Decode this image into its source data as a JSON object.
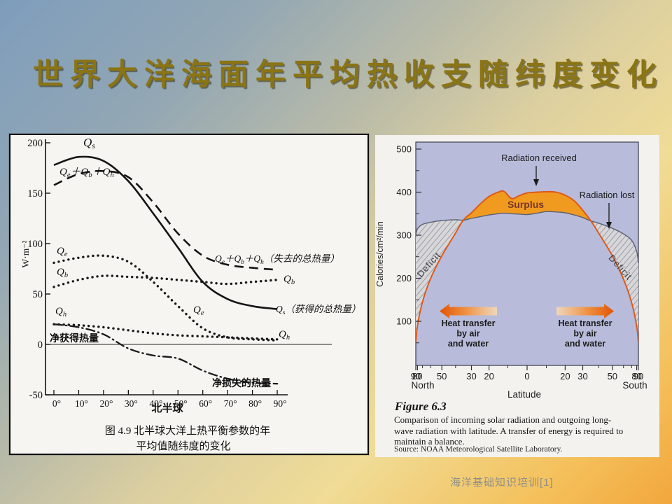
{
  "slide": {
    "title": "世界大洋海面年平均热收支随纬度变化",
    "footer": "海洋基础知识培训[1]"
  },
  "chart_data": [
    {
      "type": "line",
      "title": "图 4.9 北半球大洋上热平衡参数的年平均值随纬度的变化",
      "xlabel": "北半球",
      "ylabel": "W·m⁻²",
      "ylim": [
        -50,
        210
      ],
      "y_ticks": [
        200,
        150,
        100,
        50,
        0,
        -50
      ],
      "categories": [
        0,
        10,
        20,
        30,
        40,
        50,
        60,
        70,
        80,
        90
      ],
      "x_tick_labels": [
        "0°",
        "10°",
        "20°",
        "30°",
        "40°",
        "50°",
        "60°",
        "70°",
        "80°",
        "90°"
      ],
      "grid": false,
      "series": [
        {
          "name": "Qs",
          "label": "Q_s",
          "label_right": "Q_s（获得的总热量）",
          "style": "solid",
          "values": [
            178,
            186,
            182,
            162,
            130,
            96,
            62,
            45,
            38,
            35
          ]
        },
        {
          "name": "Qe+Qb+Qh",
          "label": "Q_e＋Q_b＋Q_h",
          "label_right": "Q_e＋Q_b＋Q_h（失去的总热量）",
          "style": "dashed",
          "values": [
            158,
            169,
            172,
            166,
            141,
            110,
            88,
            79,
            76,
            74
          ]
        },
        {
          "name": "Qe",
          "label": "Q_e",
          "label_mid": "Q_e",
          "style": "dotted",
          "values": [
            81,
            86,
            88,
            82,
            62,
            38,
            16,
            7,
            5,
            4
          ]
        },
        {
          "name": "Qb",
          "label": "Q_b",
          "label_right": "Q_b",
          "style": "dotted",
          "values": [
            57,
            64,
            68,
            67,
            66,
            64,
            62,
            60,
            62,
            64
          ]
        },
        {
          "name": "Qh",
          "label": "Q_h",
          "label_right": "Q_h",
          "style": "dotted",
          "values": [
            20,
            19,
            17,
            14,
            11,
            9,
            8,
            7,
            6,
            5
          ]
        },
        {
          "name": "net",
          "label": "净获得热量",
          "label_right": "净损失的热量",
          "style": "dashdot",
          "values": [
            20,
            17,
            10,
            -4,
            -11,
            -14,
            -26,
            -34,
            -38,
            -39
          ]
        }
      ],
      "caption_line1": "图 4.9  北半球大洋上热平衡参数的年",
      "caption_line2": "平均值随纬度的变化"
    },
    {
      "type": "area",
      "xlabel": "Latitude",
      "ylabel": "Calories/cm²/min",
      "x_axis_note": [
        "North",
        "South"
      ],
      "ylim": [
        0,
        516
      ],
      "y_ticks": [
        500,
        400,
        300,
        200,
        100
      ],
      "x_tick_lats": [
        -90,
        -80,
        -50,
        -30,
        -20,
        0,
        20,
        30,
        50,
        80,
        90
      ],
      "x_tick_labels": [
        "90",
        "80",
        "50",
        "30",
        "20",
        "0",
        "20",
        "30",
        "50",
        "80",
        "90"
      ],
      "x_minor_lats": [
        -70,
        -60,
        -40,
        -10,
        10,
        40,
        60,
        70
      ],
      "x_scale": "sine-of-latitude, negative = North",
      "lats": [
        -90,
        -80,
        -70,
        -60,
        -50,
        -40,
        -35,
        -30,
        -25,
        -20,
        -15,
        -12,
        -8,
        -4,
        0,
        5,
        10,
        15,
        20,
        25,
        30,
        35,
        40,
        50,
        60,
        70,
        80,
        90
      ],
      "series": [
        {
          "name": "Radiation received",
          "values": [
            52,
            90,
            145,
            200,
            252,
            305,
            335,
            352,
            372,
            390,
            400,
            402,
            385,
            392,
            398,
            400,
            401,
            400,
            393,
            380,
            358,
            333,
            305,
            252,
            198,
            143,
            88,
            50
          ]
        },
        {
          "name": "Radiation lost",
          "values": [
            300,
            315,
            325,
            330,
            334,
            336,
            335,
            339,
            343,
            347,
            350,
            351,
            350,
            349,
            348,
            351,
            355,
            354,
            352,
            347,
            341,
            333,
            328,
            316,
            303,
            288,
            262,
            235
          ]
        }
      ],
      "annotations": {
        "received": "Radiation received",
        "lost": "Radiation lost",
        "surplus": "Surplus",
        "deficit_north": "Deficit",
        "deficit_south": "Deficit",
        "heat_transfer_lines": [
          "Heat transfer",
          "by air",
          "and water"
        ]
      },
      "colors": {
        "plot_bg": "#b8bbda",
        "surplus_fill": "#f09a20",
        "received_line": "#dd5714",
        "lost_line": "#5c6070",
        "deficit_fill": "#d7d7da",
        "deficit_hatch": "#9c9ca6",
        "arrow_solid": "#e05505"
      },
      "caption_title": "Figure 6.3",
      "caption_text": "Comparison of incoming solar radiation and outgoing long-wave radiation with latitude. A transfer of energy is required to maintain a balance.",
      "caption_source": "Source: NOAA Meteorological Satellite Laboratory."
    }
  ]
}
